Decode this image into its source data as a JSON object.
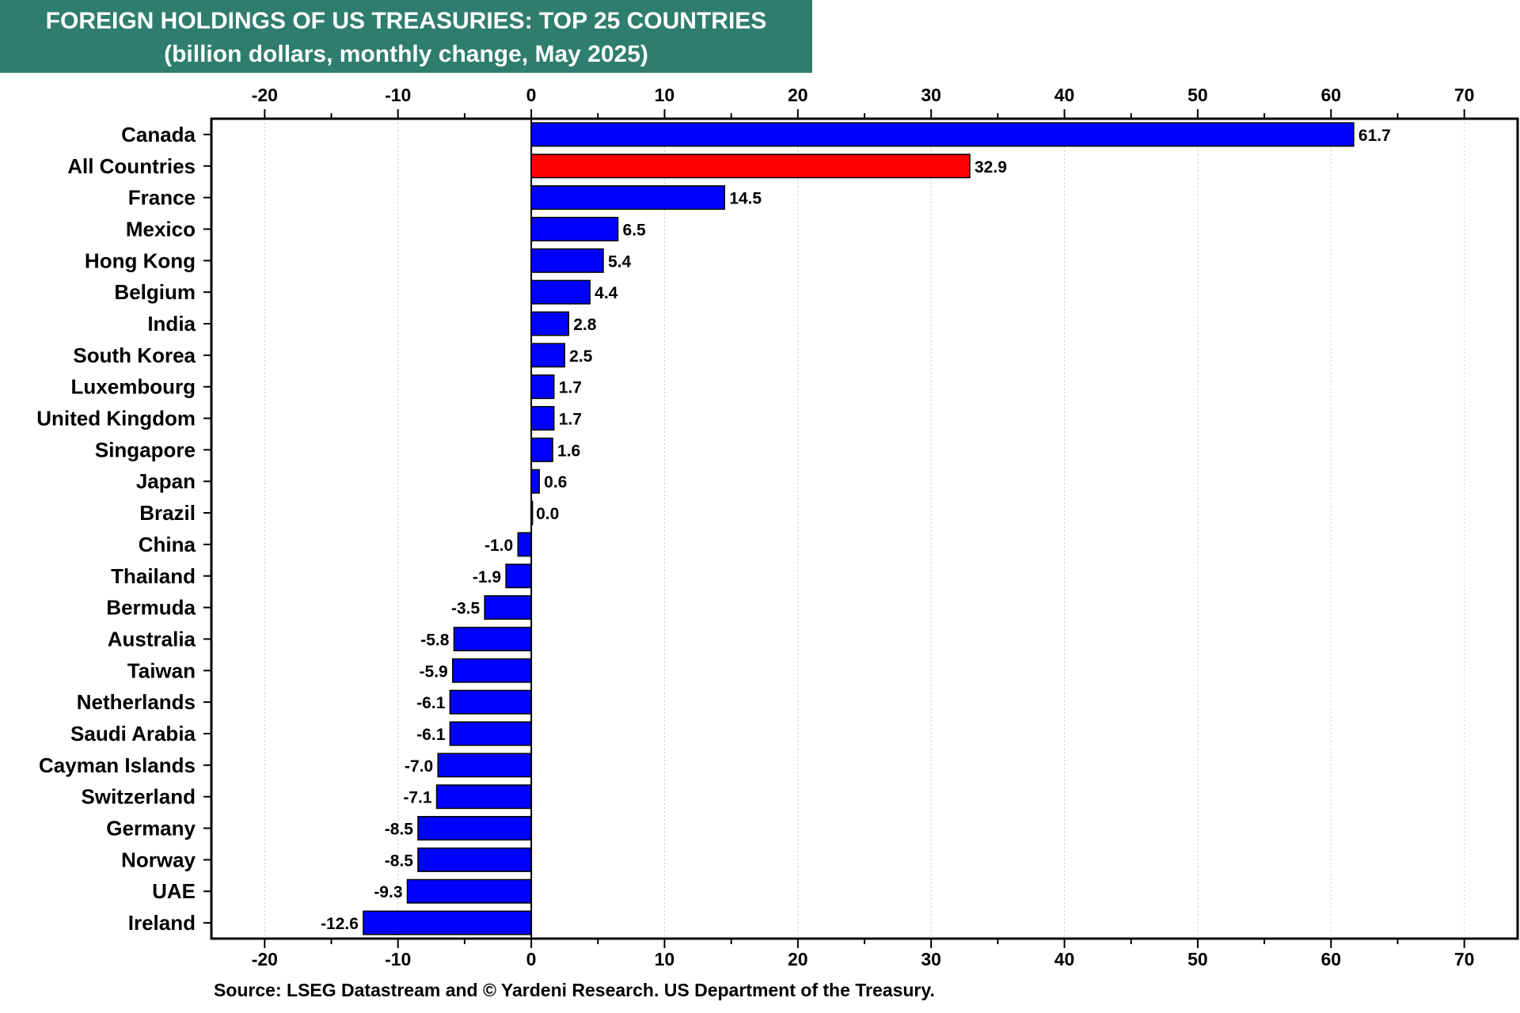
{
  "chart_data": {
    "type": "bar",
    "orientation": "horizontal",
    "title": "FOREIGN HOLDINGS OF US TREASURIES: TOP 25 COUNTRIES",
    "subtitle": "(billion dollars, monthly change, May 2025)",
    "categories": [
      "Canada",
      "All Countries",
      "France",
      "Mexico",
      "Hong Kong",
      "Belgium",
      "India",
      "South Korea",
      "Luxembourg",
      "United Kingdom",
      "Singapore",
      "Japan",
      "Brazil",
      "China",
      "Thailand",
      "Bermuda",
      "Australia",
      "Taiwan",
      "Netherlands",
      "Saudi Arabia",
      "Cayman Islands",
      "Switzerland",
      "Germany",
      "Norway",
      "UAE",
      "Ireland"
    ],
    "values": [
      61.7,
      32.9,
      14.5,
      6.5,
      5.4,
      4.4,
      2.8,
      2.5,
      1.7,
      1.7,
      1.6,
      0.6,
      0.0,
      -1.0,
      -1.9,
      -3.5,
      -5.8,
      -5.9,
      -6.1,
      -6.1,
      -7.0,
      -7.1,
      -8.5,
      -8.5,
      -9.3,
      -12.6
    ],
    "data_labels": [
      "61.7",
      "32.9",
      "14.5",
      "6.5",
      "5.4",
      "4.4",
      "2.8",
      "2.5",
      "1.7",
      "1.7",
      "1.6",
      "0.6",
      "0.0",
      "-1.0",
      "-1.9",
      "-3.5",
      "-5.8",
      "-5.9",
      "-6.1",
      "-6.1",
      "-7.0",
      "-7.1",
      "-8.5",
      "-8.5",
      "-9.3",
      "-12.6"
    ],
    "highlight_category": "All Countries",
    "xlim": [
      -24,
      74
    ],
    "xticks": [
      -20,
      -10,
      0,
      10,
      20,
      30,
      40,
      50,
      60,
      70
    ],
    "xtick_labels": [
      "-20",
      "-10",
      "0",
      "10",
      "20",
      "30",
      "40",
      "50",
      "60",
      "70"
    ],
    "colors": {
      "bar": "#0000ff",
      "highlight": "#ff0000",
      "title_bg": "#2e7d6e",
      "grid": "#cccccc"
    },
    "grid": "vertical-dotted",
    "axis_position": "top-and-bottom"
  },
  "source": "Source: LSEG Datastream and © Yardeni Research. US Department of the Treasury."
}
